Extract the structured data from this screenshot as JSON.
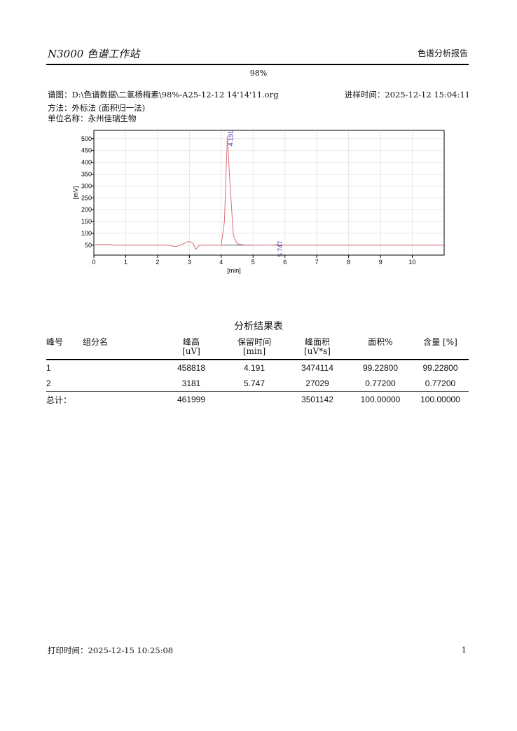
{
  "header": {
    "app_title": "N3000 色谱工作站",
    "report_type": "色谱分析报告"
  },
  "sample_name": "98%",
  "info": {
    "chromatogram": "谱图：D:\\色谱数据\\二氢杨梅素\\98%-A25-12-12 14'14'11.org",
    "injection_time": "进样时间：2025-12-12 15:04:11",
    "method": "方法：外标法 (面积归一法)",
    "unit_name": "单位名称：永州佳瑞生物"
  },
  "chart_data": {
    "type": "line",
    "xlabel": "[min]",
    "ylabel": "[mV]",
    "xlim": [
      0,
      11
    ],
    "ylim": [
      8,
      535
    ],
    "xticks": [
      0,
      1,
      2,
      3,
      4,
      5,
      6,
      7,
      8,
      9,
      10
    ],
    "yticks": [
      50,
      100,
      150,
      200,
      250,
      300,
      350,
      400,
      450,
      500
    ],
    "grid": true,
    "line_color": "#d9707a",
    "label_color": "#3a2aa8",
    "baseline": 50,
    "peaks": [
      {
        "label": "4.191",
        "rt": 4.191,
        "height": 509
      },
      {
        "label": "5.747",
        "rt": 5.747,
        "height": 53
      }
    ],
    "trace": [
      [
        0,
        50
      ],
      [
        0.1,
        53
      ],
      [
        0.5,
        53
      ],
      [
        0.6,
        50
      ],
      [
        2.35,
        50
      ],
      [
        2.5,
        45
      ],
      [
        2.6,
        45
      ],
      [
        2.75,
        52
      ],
      [
        2.95,
        65
      ],
      [
        3.05,
        64
      ],
      [
        3.12,
        56
      ],
      [
        3.2,
        33
      ],
      [
        3.3,
        48
      ],
      [
        3.4,
        50
      ],
      [
        4.0,
        50
      ],
      [
        4.1,
        150
      ],
      [
        4.191,
        509
      ],
      [
        4.28,
        300
      ],
      [
        4.38,
        90
      ],
      [
        4.5,
        56
      ],
      [
        4.7,
        51
      ],
      [
        5.0,
        50
      ],
      [
        5.7,
        51
      ],
      [
        5.75,
        53
      ],
      [
        5.8,
        51
      ],
      [
        6.0,
        50
      ],
      [
        11,
        50
      ]
    ]
  },
  "table": {
    "title": "分析结果表",
    "headers": [
      {
        "line1": "峰号",
        "line2": ""
      },
      {
        "line1": "组分名",
        "line2": ""
      },
      {
        "line1": "峰高",
        "line2": "[uV]"
      },
      {
        "line1": "保留时间",
        "line2": "[min]"
      },
      {
        "line1": "峰面积",
        "line2": "[uV*s]"
      },
      {
        "line1": "面积%",
        "line2": ""
      },
      {
        "line1": "含量 [%]",
        "line2": ""
      }
    ],
    "rows": [
      [
        "1",
        "",
        "458818",
        "4.191",
        "3474114",
        "99.22800",
        "99.22800"
      ],
      [
        "2",
        "",
        "3181",
        "5.747",
        "27029",
        "0.77200",
        "0.77200"
      ]
    ],
    "total": [
      "总计：",
      "",
      "461999",
      "",
      "3501142",
      "100.00000",
      "100.00000"
    ]
  },
  "footer": {
    "print_time": "打印时间：2025-12-15 10:25:08",
    "page": "1"
  }
}
